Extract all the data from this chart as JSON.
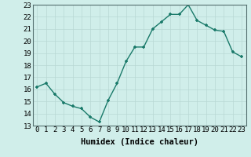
{
  "x": [
    0,
    1,
    2,
    3,
    4,
    5,
    6,
    7,
    8,
    9,
    10,
    11,
    12,
    13,
    14,
    15,
    16,
    17,
    18,
    19,
    20,
    21,
    22,
    23
  ],
  "y": [
    16.2,
    16.5,
    15.6,
    14.9,
    14.6,
    14.4,
    13.7,
    13.3,
    15.1,
    16.5,
    18.3,
    19.5,
    19.5,
    21.0,
    21.6,
    22.2,
    22.2,
    23.0,
    21.7,
    21.3,
    20.9,
    20.8,
    19.1,
    18.7
  ],
  "xlabel": "Humidex (Indice chaleur)",
  "ylim": [
    13,
    23
  ],
  "xlim": [
    -0.5,
    23.5
  ],
  "yticks": [
    13,
    14,
    15,
    16,
    17,
    18,
    19,
    20,
    21,
    22,
    23
  ],
  "xticks": [
    0,
    1,
    2,
    3,
    4,
    5,
    6,
    7,
    8,
    9,
    10,
    11,
    12,
    13,
    14,
    15,
    16,
    17,
    18,
    19,
    20,
    21,
    22,
    23
  ],
  "line_color": "#1a7a6a",
  "marker_color": "#1a7a6a",
  "bg_color": "#d0eeea",
  "grid_color": "#b8d8d4",
  "xlabel_fontsize": 7.5,
  "tick_fontsize": 6.5,
  "line_width": 1.0,
  "marker_size": 3.5
}
